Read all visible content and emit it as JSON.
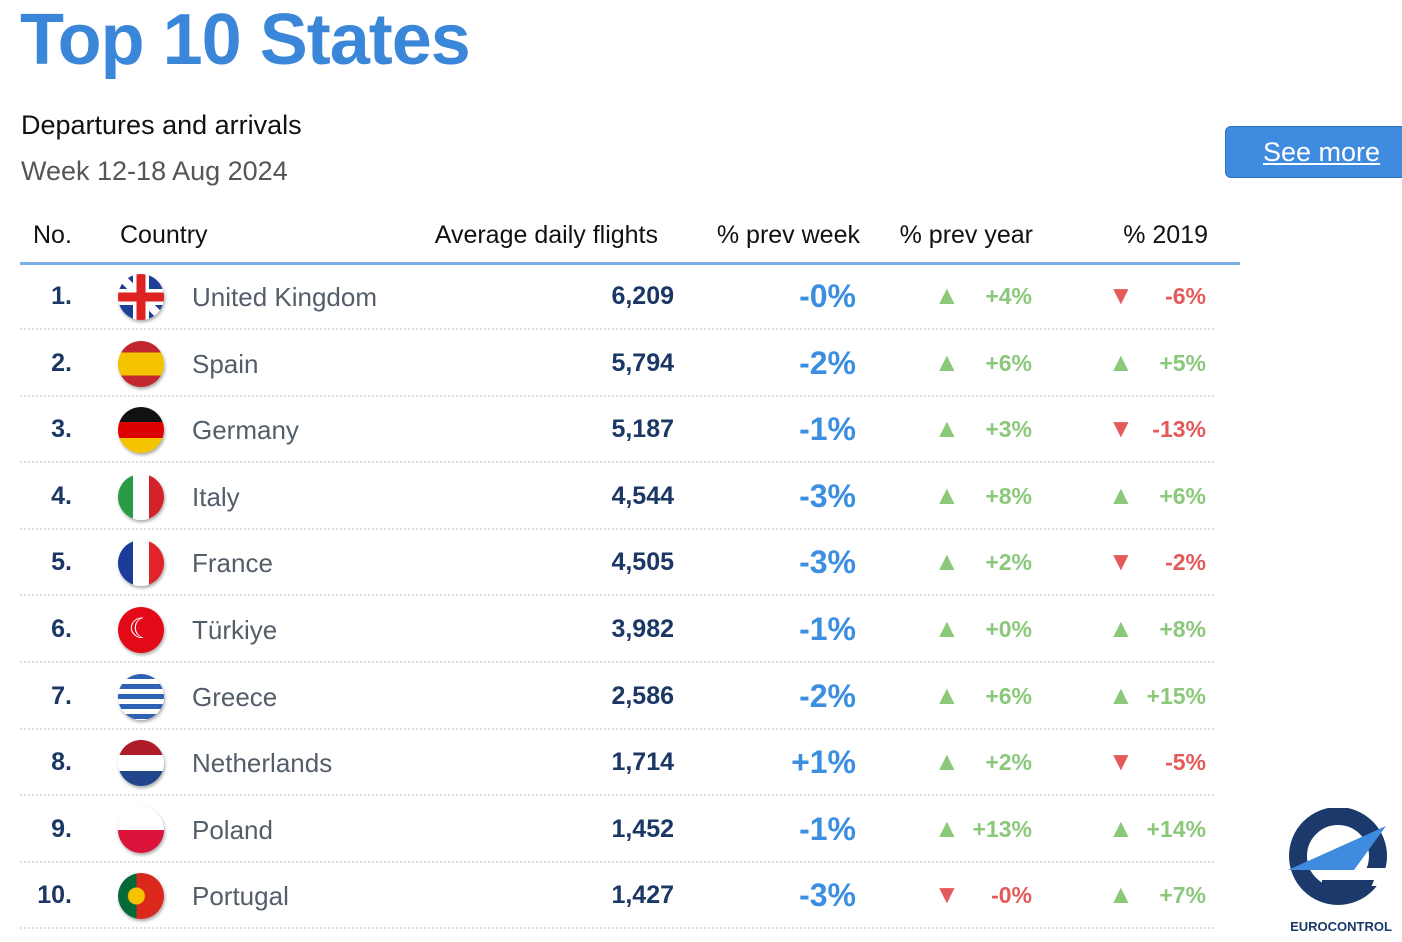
{
  "title": "Top 10 States",
  "subtitle": "Departures and arrivals",
  "week": "Week 12-18 Aug 2024",
  "see_more": "See more",
  "headers": {
    "no": "No.",
    "country": "Country",
    "flights": "Average daily flights",
    "prev_week": "% prev week",
    "prev_year": "% prev year",
    "y2019": "% 2019"
  },
  "logo_text": "EUROCONTROL",
  "colors": {
    "title": "#3a86d8",
    "up": "#8bc87a",
    "down": "#e45a5a",
    "prev_week": "#3b8ee0"
  },
  "rows": [
    {
      "no": "1.",
      "country": "United Kingdom",
      "flag": "uk",
      "flights": "6,209",
      "prev_week": "-0%",
      "prev_year": "+4%",
      "prev_year_dir": "up",
      "y2019": "-6%",
      "y2019_dir": "down"
    },
    {
      "no": "2.",
      "country": "Spain",
      "flag": "es",
      "flights": "5,794",
      "prev_week": "-2%",
      "prev_year": "+6%",
      "prev_year_dir": "up",
      "y2019": "+5%",
      "y2019_dir": "up"
    },
    {
      "no": "3.",
      "country": "Germany",
      "flag": "de",
      "flights": "5,187",
      "prev_week": "-1%",
      "prev_year": "+3%",
      "prev_year_dir": "up",
      "y2019": "-13%",
      "y2019_dir": "down"
    },
    {
      "no": "4.",
      "country": "Italy",
      "flag": "it",
      "flights": "4,544",
      "prev_week": "-3%",
      "prev_year": "+8%",
      "prev_year_dir": "up",
      "y2019": "+6%",
      "y2019_dir": "up"
    },
    {
      "no": "5.",
      "country": "France",
      "flag": "fr",
      "flights": "4,505",
      "prev_week": "-3%",
      "prev_year": "+2%",
      "prev_year_dir": "up",
      "y2019": "-2%",
      "y2019_dir": "down"
    },
    {
      "no": "6.",
      "country": "Türkiye",
      "flag": "tr",
      "flights": "3,982",
      "prev_week": "-1%",
      "prev_year": "+0%",
      "prev_year_dir": "up",
      "y2019": "+8%",
      "y2019_dir": "up"
    },
    {
      "no": "7.",
      "country": "Greece",
      "flag": "gr",
      "flights": "2,586",
      "prev_week": "-2%",
      "prev_year": "+6%",
      "prev_year_dir": "up",
      "y2019": "+15%",
      "y2019_dir": "up"
    },
    {
      "no": "8.",
      "country": "Netherlands",
      "flag": "nl",
      "flights": "1,714",
      "prev_week": "+1%",
      "prev_year": "+2%",
      "prev_year_dir": "up",
      "y2019": "-5%",
      "y2019_dir": "down"
    },
    {
      "no": "9.",
      "country": "Poland",
      "flag": "pl",
      "flights": "1,452",
      "prev_week": "-1%",
      "prev_year": "+13%",
      "prev_year_dir": "up",
      "y2019": "+14%",
      "y2019_dir": "up"
    },
    {
      "no": "10.",
      "country": "Portugal",
      "flag": "pt",
      "flights": "1,427",
      "prev_week": "-3%",
      "prev_year": "-0%",
      "prev_year_dir": "down",
      "y2019": "+7%",
      "y2019_dir": "up"
    }
  ]
}
